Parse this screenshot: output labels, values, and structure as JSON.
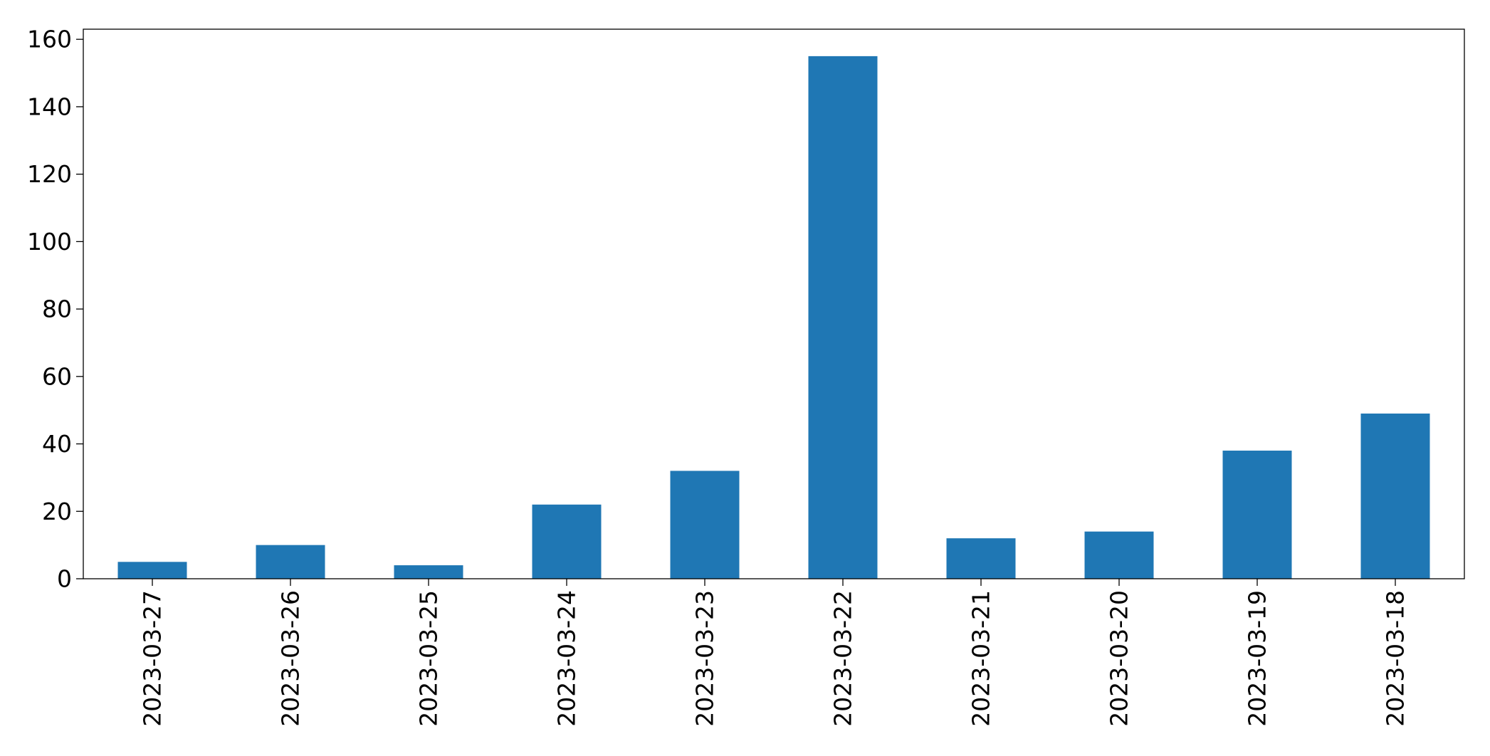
{
  "chart_data": {
    "type": "bar",
    "categories": [
      "2023-03-27",
      "2023-03-26",
      "2023-03-25",
      "2023-03-24",
      "2023-03-23",
      "2023-03-22",
      "2023-03-21",
      "2023-03-20",
      "2023-03-19",
      "2023-03-18"
    ],
    "values": [
      5,
      10,
      4,
      22,
      32,
      155,
      12,
      14,
      38,
      49
    ],
    "yticks": [
      "0",
      "20",
      "40",
      "60",
      "80",
      "100",
      "120",
      "140",
      "160"
    ],
    "ylim": [
      0,
      163
    ],
    "title": "",
    "xlabel": "",
    "ylabel": "",
    "grid": false,
    "bar_color": "#1f77b4"
  }
}
